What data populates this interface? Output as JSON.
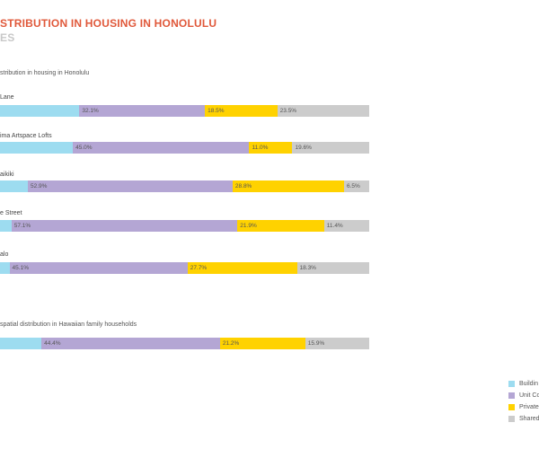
{
  "header": {
    "title": "STRIBUTION IN HOUSING IN HONOLULU",
    "subtitle": "ES"
  },
  "chart_data": {
    "type": "bar",
    "orientation": "horizontal",
    "stacked": true,
    "value_unit": "%",
    "series": [
      {
        "name": "Buildin",
        "color": "#9ddcf0"
      },
      {
        "name": "Unit Co",
        "color": "#b4a6d4"
      },
      {
        "name": "Private",
        "color": "#ffd200"
      },
      {
        "name": "Shared",
        "color": "#cccccc"
      }
    ],
    "groups": [
      {
        "label": "stribution in housing in Honolulu",
        "rows": [
          {
            "label": "Lane",
            "values": [
              20.3,
              32.1,
              18.5,
              23.5
            ],
            "labels": [
              "",
              "32.1%",
              "18.5%",
              "23.5%"
            ]
          },
          {
            "label": "ima Artspace Lofts",
            "values": [
              18.6,
              45.0,
              11.0,
              19.6
            ],
            "labels": [
              "",
              "45.0%",
              "11.0%",
              "19.6%"
            ]
          },
          {
            "label": "aikiki",
            "values": [
              7.2,
              52.9,
              28.8,
              6.5
            ],
            "labels": [
              "",
              "52.9%",
              "28.8%",
              "6.5%"
            ]
          },
          {
            "label": "e Street",
            "values": [
              2.9,
              57.1,
              21.9,
              11.4
            ],
            "labels": [
              "",
              "57.1%",
              "21.9%",
              "11.4%"
            ]
          },
          {
            "label": "alo",
            "values": [
              2.4,
              45.1,
              27.7,
              18.3
            ],
            "labels": [
              "",
              "45.1%",
              "27.7%",
              "18.3%"
            ]
          }
        ]
      },
      {
        "label": "spatial distribution in Hawaiian family households",
        "rows": [
          {
            "label": "",
            "values": [
              10.3,
              44.4,
              21.2,
              15.9
            ],
            "labels": [
              "",
              "44.4%",
              "21.2%",
              "15.9%"
            ]
          }
        ]
      }
    ],
    "legend": {
      "position": "bottom-right"
    },
    "grid": false
  }
}
